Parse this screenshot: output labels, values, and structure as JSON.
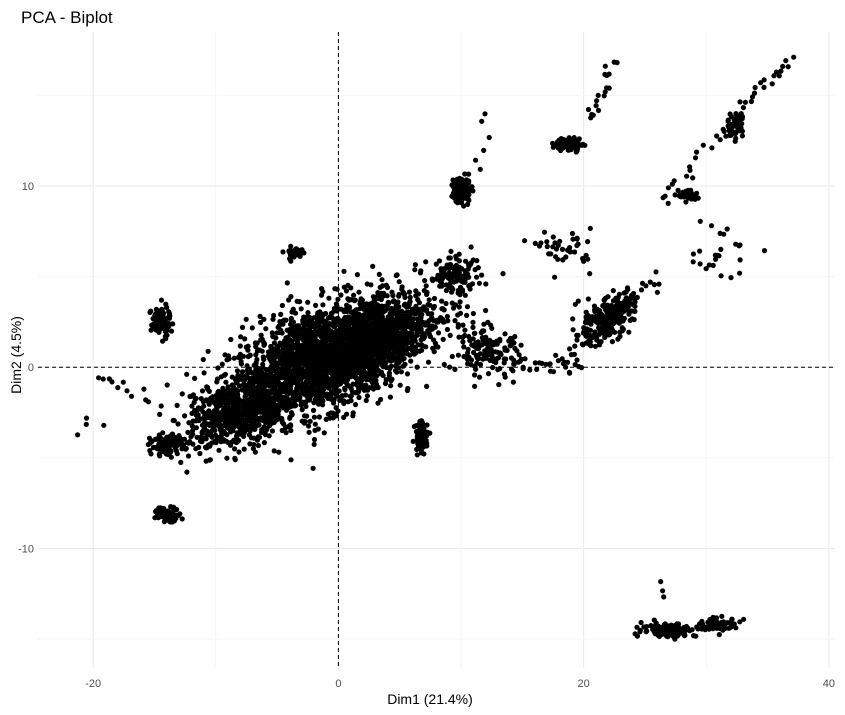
{
  "chart_data": {
    "type": "scatter",
    "title": "PCA - Biplot",
    "xlabel": "Dim1 (21.4%)",
    "ylabel": "Dim2 (4.5%)",
    "xlim": [
      -24.5,
      40.5
    ],
    "ylim": [
      -16.6,
      18.5
    ],
    "xticks": [
      -20,
      0,
      20,
      40
    ],
    "yticks": [
      -10,
      0,
      10
    ],
    "xtick_labels": [
      "-20",
      "0",
      "20",
      "40"
    ],
    "ytick_labels": [
      "-10",
      "0",
      "10"
    ],
    "grid": true,
    "reference_lines": {
      "x": 0,
      "y": 0,
      "style": "dashed"
    },
    "point_color": "#000000",
    "clusters": [
      {
        "cx": -1.5,
        "cy": 0.5,
        "sx": 6.5,
        "sy": 2.6,
        "n": 1800,
        "rot": 0.25
      },
      {
        "cx": 3.0,
        "cy": 1.5,
        "sx": 5.0,
        "sy": 2.0,
        "n": 900,
        "rot": 0.3
      },
      {
        "cx": -8.0,
        "cy": -2.5,
        "sx": 4.0,
        "sy": 1.6,
        "n": 700,
        "rot": 0.2
      },
      {
        "cx": -14.5,
        "cy": 2.5,
        "sx": 0.7,
        "sy": 0.8,
        "n": 90,
        "rot": 0.0
      },
      {
        "cx": -14.0,
        "cy": -4.3,
        "sx": 1.2,
        "sy": 0.5,
        "n": 110,
        "rot": 0.0
      },
      {
        "cx": -14.0,
        "cy": -8.1,
        "sx": 1.0,
        "sy": 0.35,
        "n": 70,
        "rot": 0.0
      },
      {
        "cx": 6.8,
        "cy": -3.8,
        "sx": 0.5,
        "sy": 0.8,
        "n": 80,
        "rot": 0.0
      },
      {
        "cx": 10.0,
        "cy": 9.8,
        "sx": 0.7,
        "sy": 0.6,
        "n": 130,
        "rot": 0.5
      },
      {
        "cx": 18.8,
        "cy": 12.3,
        "sx": 1.0,
        "sy": 0.35,
        "n": 90,
        "rot": 0.0
      },
      {
        "cx": 21.5,
        "cy": 2.5,
        "sx": 2.2,
        "sy": 1.0,
        "n": 180,
        "rot": 0.3
      },
      {
        "cx": 12.0,
        "cy": 1.0,
        "sx": 2.5,
        "sy": 1.2,
        "n": 120,
        "rot": -0.2
      },
      {
        "cx": 27.0,
        "cy": -14.5,
        "sx": 2.0,
        "sy": 0.35,
        "n": 140,
        "rot": 0.0
      },
      {
        "cx": 31.0,
        "cy": -14.2,
        "sx": 1.5,
        "sy": 0.3,
        "n": 80,
        "rot": 0.0
      },
      {
        "cx": 28.5,
        "cy": 9.5,
        "sx": 0.7,
        "sy": 0.3,
        "n": 40,
        "rot": 0.0
      },
      {
        "cx": 32.5,
        "cy": 13.3,
        "sx": 0.8,
        "sy": 0.6,
        "n": 50,
        "rot": 0.6
      },
      {
        "cx": 18.5,
        "cy": 6.5,
        "sx": 2.0,
        "sy": 1.0,
        "n": 40,
        "rot": 0.0
      },
      {
        "cx": 31.0,
        "cy": 6.5,
        "sx": 2.5,
        "sy": 1.5,
        "n": 25,
        "rot": 0.0
      },
      {
        "cx": 22.8,
        "cy": 3.2,
        "sx": 1.5,
        "sy": 0.8,
        "n": 60,
        "rot": 0.3
      },
      {
        "cx": 9.5,
        "cy": 5.0,
        "sx": 2.0,
        "sy": 0.9,
        "n": 120,
        "rot": 0.0
      },
      {
        "cx": -3.5,
        "cy": 6.3,
        "sx": 0.8,
        "sy": 0.4,
        "n": 30,
        "rot": 0.0
      }
    ],
    "trails": [
      {
        "from": [
          20.5,
          13.5
        ],
        "to": [
          22.5,
          17.0
        ],
        "n": 18
      },
      {
        "from": [
          33.0,
          14.5
        ],
        "to": [
          37.0,
          17.0
        ],
        "n": 18
      },
      {
        "from": [
          26.0,
          9.0
        ],
        "to": [
          33.0,
          14.0
        ],
        "n": 22
      },
      {
        "from": [
          18.5,
          0.5
        ],
        "to": [
          26.0,
          5.0
        ],
        "n": 40
      },
      {
        "from": [
          10.5,
          0.5
        ],
        "to": [
          20.0,
          0.0
        ],
        "n": 45
      },
      {
        "from": [
          26.5,
          -13.0
        ],
        "to": [
          26.5,
          -11.5
        ],
        "n": 3
      },
      {
        "from": [
          -19.5,
          -0.5
        ],
        "to": [
          -15.0,
          -2.0
        ],
        "n": 12
      },
      {
        "from": [
          -21.5,
          -3.5
        ],
        "to": [
          -19.5,
          -3.0
        ],
        "n": 4
      },
      {
        "from": [
          11.5,
          10.5
        ],
        "to": [
          12.0,
          14.0
        ],
        "n": 6
      }
    ]
  }
}
